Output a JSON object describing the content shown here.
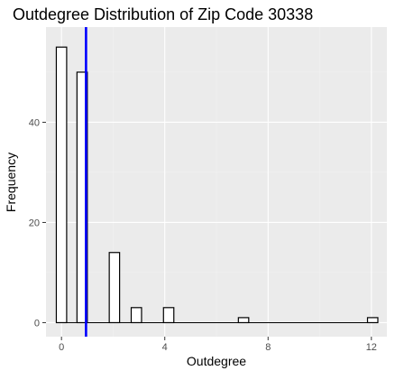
{
  "chart_data": {
    "type": "bar",
    "title": "Outdegree Distribution of Zip Code 30338",
    "xlabel": "Outdegree",
    "ylabel": "Frequency",
    "xlim": [
      -0.6,
      12.6
    ],
    "ylim": [
      -2.8,
      59
    ],
    "x_ticks": [
      0,
      4,
      8,
      12
    ],
    "y_ticks": [
      0,
      20,
      40
    ],
    "bin_width": 0.4,
    "bins": [
      {
        "center": 0,
        "count": 55
      },
      {
        "center": 0.8,
        "count": 50
      },
      {
        "center": 2.05,
        "count": 14
      },
      {
        "center": 2.9,
        "count": 3
      },
      {
        "center": 4.15,
        "count": 3
      },
      {
        "center": 7.05,
        "count": 1
      },
      {
        "center": 12.05,
        "count": 1
      }
    ],
    "baseline_segments": [
      [
        0.2,
        0.6
      ],
      [
        1.0,
        1.85
      ],
      [
        2.25,
        2.7
      ],
      [
        3.1,
        3.95
      ],
      [
        4.35,
        6.85
      ],
      [
        7.25,
        11.85
      ]
    ],
    "vline": {
      "x": 0.95,
      "color": "#0000ff"
    },
    "grid": true,
    "panel_color": "#ebebeb",
    "bar_fill": "#ffffff",
    "bar_stroke": "#000000"
  }
}
